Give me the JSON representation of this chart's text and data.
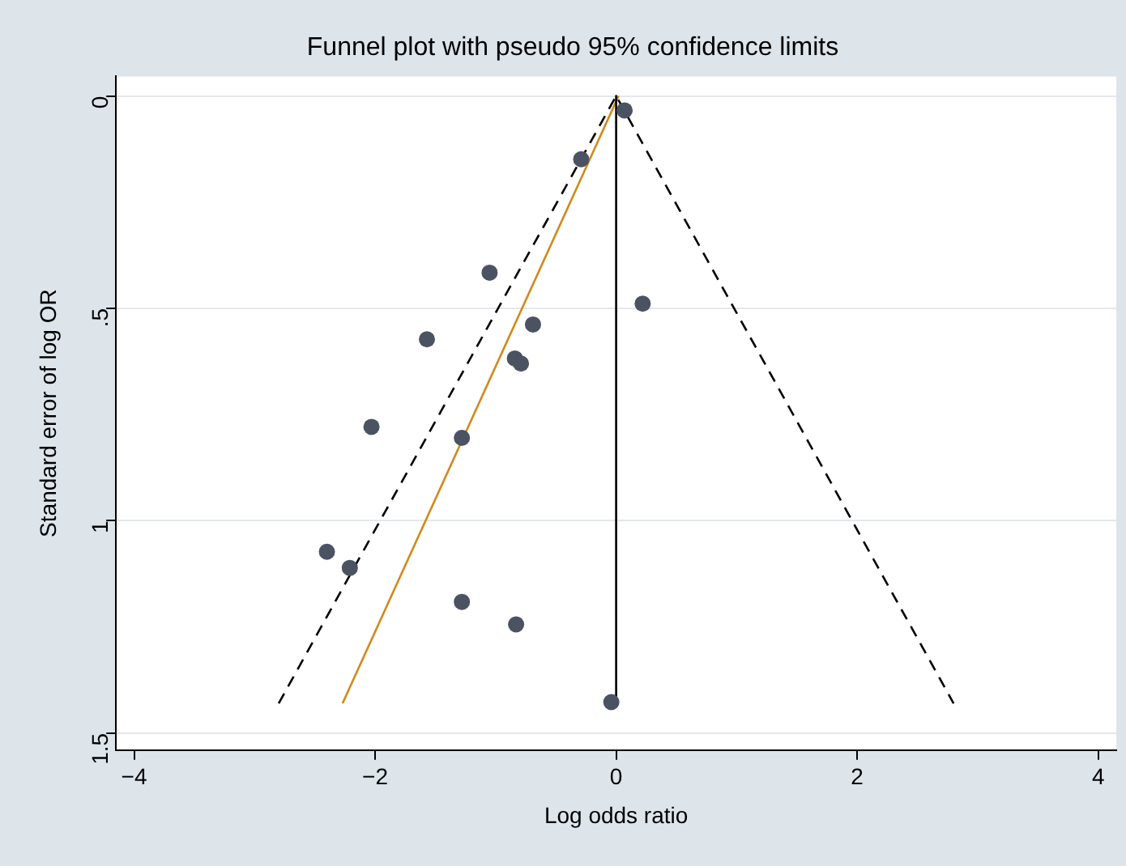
{
  "chart_data": {
    "type": "scatter",
    "title": "Funnel plot with pseudo 95% confidence limits",
    "xlabel": "Log odds ratio",
    "ylabel": "Standard error of log OR",
    "xlim": [
      -4.15,
      4.15
    ],
    "xticks": [
      {
        "value": -4,
        "label": "−4"
      },
      {
        "value": -2,
        "label": "−2"
      },
      0,
      2,
      4
    ],
    "ylim": [
      1.54,
      -0.046
    ],
    "yticks": [
      0,
      {
        "value": 0.5,
        "label": ".5"
      },
      1,
      1.5
    ],
    "grid": "y",
    "legend": false,
    "series": [
      {
        "type": "line",
        "color": "#000000",
        "line_style": "dashed",
        "marker": "none",
        "x": [
          -2.8,
          0,
          2.8
        ],
        "values": [
          1.43,
          0,
          1.43
        ]
      },
      {
        "type": "line",
        "color": "#000000",
        "line_style": "solid",
        "marker": "none",
        "x": [
          0,
          0
        ],
        "values": [
          0,
          1.43
        ]
      },
      {
        "type": "line",
        "color": "#d08a1a",
        "line_style": "solid",
        "marker": "none",
        "x": [
          -2.27,
          0.02
        ],
        "values": [
          1.43,
          0
        ]
      },
      {
        "color": "#4b5262",
        "marker": "circle",
        "x": [
          0.07,
          -0.29,
          -1.05,
          0.22,
          -0.69,
          -1.57,
          -0.84,
          -0.79,
          -2.03,
          -1.28,
          -2.4,
          -2.21,
          -1.28,
          -0.83,
          -0.04
        ],
        "values": [
          0.034,
          0.149,
          0.416,
          0.489,
          0.538,
          0.573,
          0.618,
          0.63,
          0.779,
          0.805,
          1.073,
          1.111,
          1.191,
          1.244,
          1.427
        ]
      }
    ]
  }
}
